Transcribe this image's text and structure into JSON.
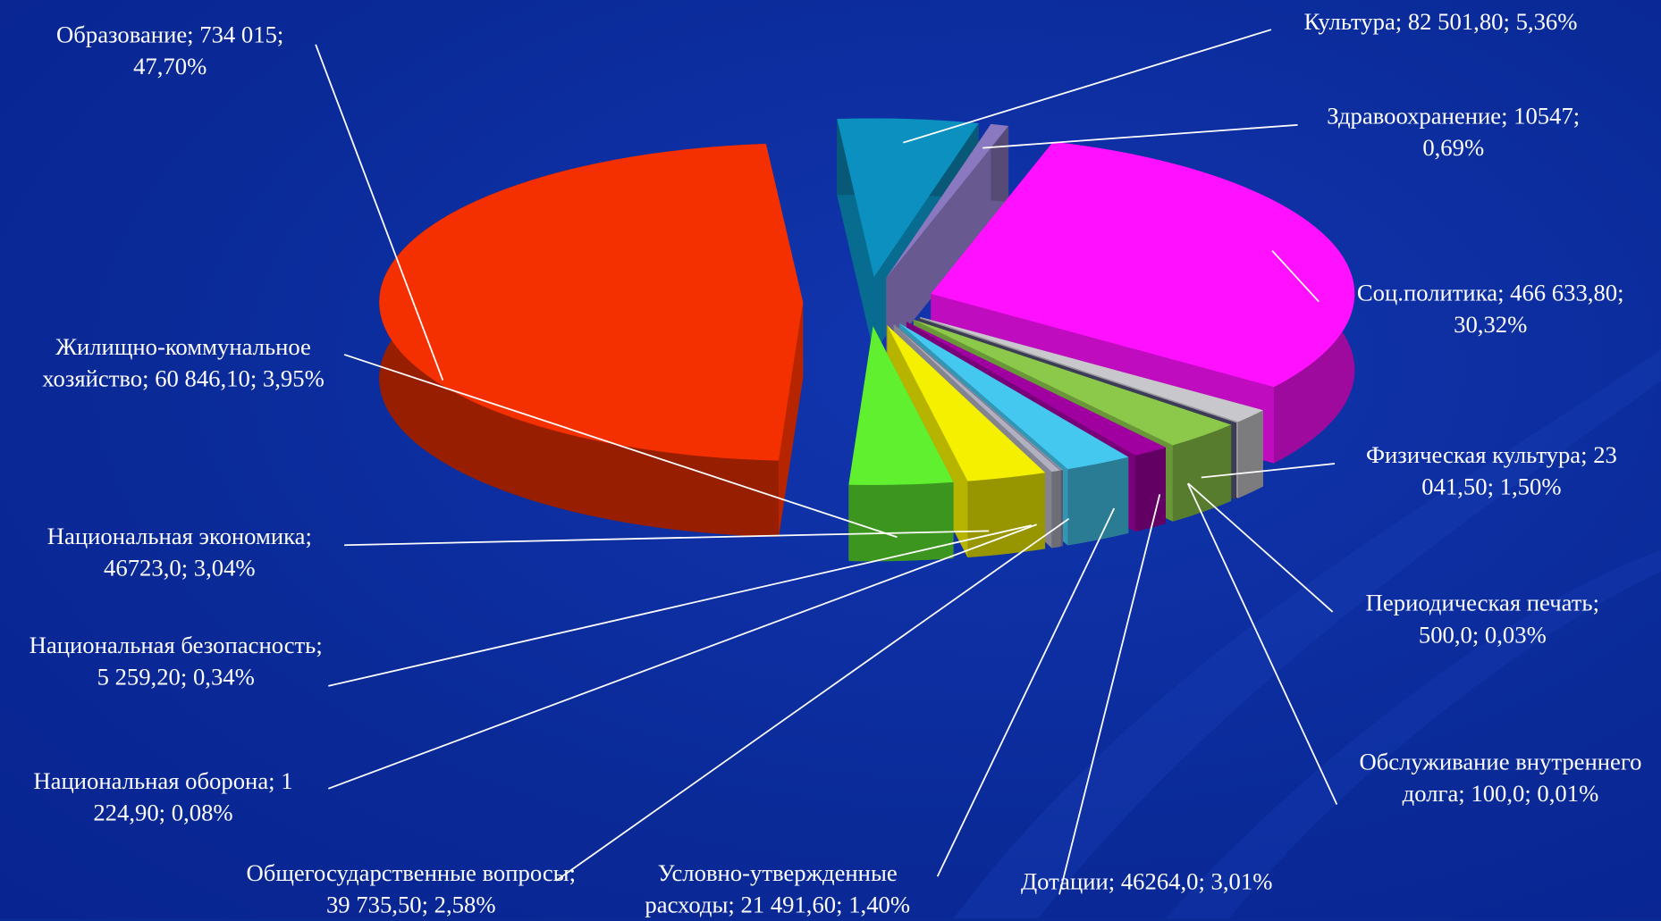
{
  "chart_data": {
    "type": "pie3d",
    "categories": [
      "Культура",
      "Здравоохранение",
      "Соц.политика",
      "Физическая культура",
      "Периодическая печать",
      "Обслуживание внутреннего долга",
      "Дотации",
      "Условно-утвержденные расходы",
      "Общегосударственные вопросы",
      "Национальная оборона",
      "Национальная безопасность",
      "Национальная экономика",
      "Жилищно-коммунальное хозяйство",
      "Образование"
    ],
    "values": [
      82501.8,
      10547,
      466633.8,
      23041.5,
      500.0,
      100.0,
      46264.0,
      21491.6,
      39735.5,
      1224.9,
      5259.2,
      46723.0,
      60846.1,
      734015
    ],
    "value_labels": [
      "Культура; 82 501,80; 5,36%",
      "Здравоохранение; 10547; 0,69%",
      "Соц.политика; 466 633,80; 30,32%",
      "Физическая культура; 23 041,50; 1,50%",
      "Периодическая печать; 500,0; 0,03%",
      "Обслуживание внутреннего долга; 100,0; 0,01%",
      "Дотации; 46264,0; 3,01%",
      "Условно-утвержденные расходы; 21 491,60; 1,40%",
      "Общегосударственные вопросы; 39 735,50; 2,58%",
      "Национальная оборона; 1 224,90; 0,08%",
      "Национальная безопасность; 5 259,20; 0,34%",
      "Национальная экономика; 46723,0; 3,04%",
      "Жилищно-коммунальное хозяйство; 60 846,10; 3,95%",
      "Образование; 734 015; 47,70%"
    ],
    "colors": [
      "#0b90c0",
      "#8a78c0",
      "#ff10ff",
      "#c8c8cc",
      "#3c3c78",
      "#505070",
      "#8cc84a",
      "#a000a0",
      "#44c8f0",
      "#9090a8",
      "#b0b0c0",
      "#f4f000",
      "#60f030",
      "#f43000"
    ]
  }
}
